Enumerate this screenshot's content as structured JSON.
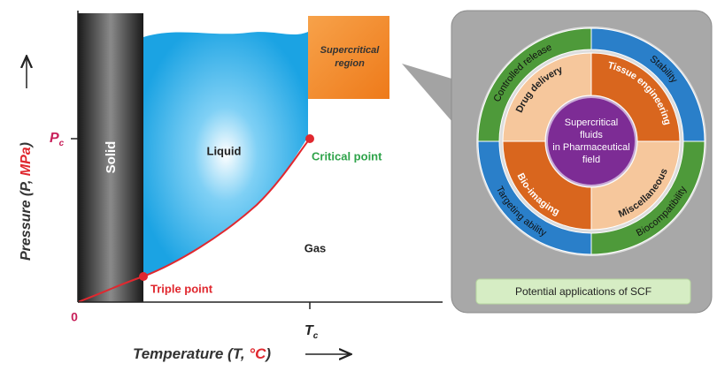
{
  "phase_diagram": {
    "y_axis": {
      "label": [
        "Pressure (",
        "P",
        ", ",
        "MPa",
        ")"
      ],
      "tick": {
        "symbol": "P",
        "subscript": "c"
      }
    },
    "x_axis": {
      "label": [
        "Temperature (",
        "T",
        ", ",
        "°C",
        ")"
      ],
      "origin": "0",
      "tick": {
        "symbol": "T",
        "subscript": "c"
      }
    },
    "regions": {
      "solid": "Solid",
      "liquid": "Liquid",
      "gas": "Gas",
      "supercritical": [
        "Supercritical",
        "region"
      ]
    },
    "points": {
      "critical": "Critical point",
      "triple": "Triple point"
    }
  },
  "applications": {
    "center": [
      "Supercritical",
      "fluids",
      "in Pharmaceutical",
      "field"
    ],
    "inner_ring": [
      "Drug delivery",
      "Tissue engineering",
      "Miscellaneous",
      "Bio-imaging"
    ],
    "outer_ring": [
      "Controlled release",
      "Stability",
      "Biocompatibility",
      "Targeting ability"
    ],
    "footer": "Potential applications of SCF"
  }
}
